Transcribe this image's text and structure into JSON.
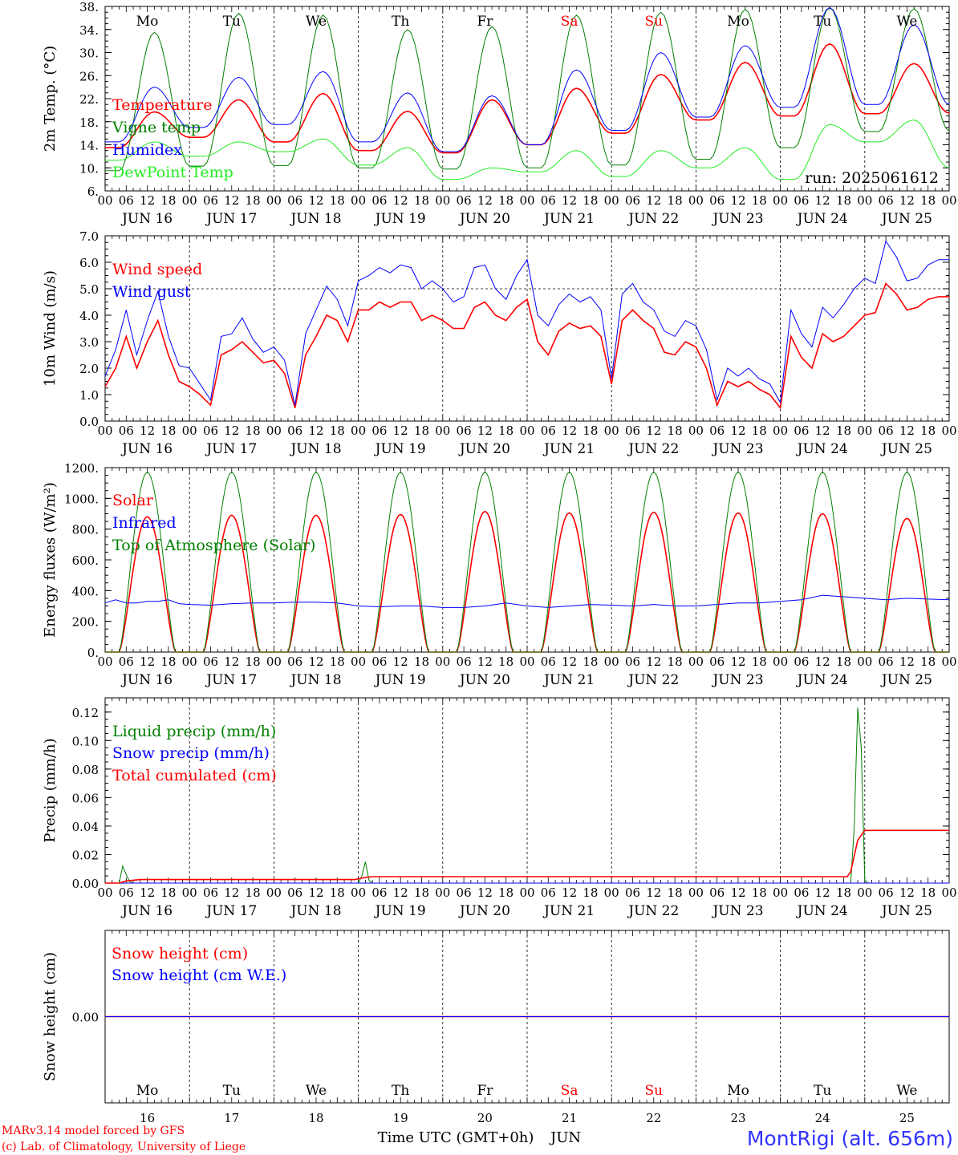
{
  "run_label": "run: 2025061612",
  "station": "MontRigi (alt. 656m)",
  "footer": {
    "line1": "MARv3.14 model forced by GFS",
    "line2": "(c) Lab. of Climatology, University of Liege",
    "xlabel": "Time UTC (GMT+0h)",
    "month": "JUN"
  },
  "days": {
    "weekday": [
      "Mo",
      "Tu",
      "We",
      "Th",
      "Fr",
      "Sa",
      "Su",
      "Mo",
      "Tu",
      "We"
    ],
    "weekend": [
      false,
      false,
      false,
      false,
      false,
      true,
      true,
      false,
      false,
      false
    ],
    "date_labels": [
      "JUN 16",
      "JUN 17",
      "JUN 18",
      "JUN 19",
      "JUN 20",
      "JUN 21",
      "JUN 22",
      "JUN 23",
      "JUN 24",
      "JUN 25"
    ],
    "day_numbers": [
      "16",
      "17",
      "18",
      "19",
      "20",
      "21",
      "22",
      "23",
      "24",
      "25"
    ],
    "hour_labels": [
      "00",
      "06",
      "12",
      "18"
    ]
  },
  "colors": {
    "red": "#ff0000",
    "green": "#008000",
    "blue": "#0000ff",
    "lightgreen": "#22ee22"
  },
  "chart_data": [
    {
      "id": "temp",
      "type": "line",
      "ylabel": "2m Temp. (°C)",
      "ylim": [
        6,
        38
      ],
      "yticks": [
        6,
        10,
        14,
        18,
        22,
        26,
        30,
        34,
        38
      ],
      "ytick_labels": [
        "6.",
        "10.",
        "14.",
        "18.",
        "22.",
        "26.",
        "30.",
        "34.",
        "38."
      ],
      "show_weekdays": true,
      "series": [
        {
          "name": "Temperature",
          "color": "#ff0000",
          "mins": [
            13.5,
            15.3,
            14.5,
            13.0,
            12.6,
            14.0,
            16.0,
            18.3,
            19.0,
            19.4,
            19.5
          ],
          "maxs": [
            19.7,
            21.8,
            22.9,
            19.8,
            21.8,
            23.8,
            26.2,
            28.3,
            31.5,
            28.1
          ]
        },
        {
          "name": "Vigne temp",
          "color": "#008000",
          "mins": [
            9.5,
            10.3,
            10.4,
            10.0,
            9.8,
            10.0,
            10.5,
            11.5,
            13.5,
            16.3,
            16.4
          ],
          "maxs": [
            33.5,
            36.8,
            36.5,
            34.0,
            34.5,
            36.5,
            37.0,
            37.5,
            37.8,
            37.6
          ]
        },
        {
          "name": "Humidex",
          "color": "#0000ff",
          "mins": [
            14.5,
            17.0,
            17.5,
            14.5,
            12.8,
            14.0,
            16.5,
            18.8,
            20.5,
            21.0,
            21.0
          ],
          "maxs": [
            24.0,
            25.7,
            26.7,
            23.0,
            22.5,
            27.0,
            30.0,
            31.2,
            37.8,
            34.8
          ]
        },
        {
          "name": "DewPoint Temp",
          "color": "#22ee22",
          "mins": [
            11.3,
            12.0,
            12.8,
            10.5,
            8.0,
            9.3,
            8.5,
            10.0,
            8.0,
            14.5,
            10.0
          ],
          "maxs": [
            14.5,
            14.5,
            15.0,
            13.5,
            10.0,
            13.0,
            13.0,
            13.5,
            17.5,
            18.3
          ]
        }
      ]
    },
    {
      "id": "wind",
      "type": "line",
      "ylabel": "10m Wind (m/s)",
      "ylim": [
        0,
        7
      ],
      "yticks": [
        0,
        1,
        2,
        3,
        4,
        5,
        6,
        7
      ],
      "ytick_labels": [
        "0.0",
        "1.0",
        "2.0",
        "3.0",
        "4.0",
        "5.0",
        "6.0",
        "7.0"
      ],
      "refline": 5,
      "series": [
        {
          "name": "Wind speed",
          "color": "#ff0000",
          "x": [
            0,
            3,
            6,
            9,
            12,
            15,
            18,
            21,
            24,
            27,
            30,
            33,
            36,
            39,
            42,
            45,
            48,
            51,
            54,
            57,
            60,
            63,
            66,
            69,
            72,
            75,
            78,
            81,
            84,
            87,
            90,
            93,
            96,
            99,
            102,
            105,
            108,
            111,
            114,
            117,
            120,
            123,
            126,
            129,
            132,
            135,
            138,
            141,
            144,
            147,
            150,
            153,
            156,
            159,
            162,
            165,
            168,
            171,
            174,
            177,
            180,
            183,
            186,
            189,
            192,
            195,
            198,
            201,
            204,
            207,
            210,
            213,
            216,
            219,
            222,
            225,
            228,
            231,
            234,
            237,
            240
          ],
          "values": [
            1.3,
            2.0,
            3.2,
            2.0,
            3.0,
            3.8,
            2.5,
            1.5,
            1.3,
            1.0,
            0.6,
            2.5,
            2.7,
            3.0,
            2.6,
            2.2,
            2.3,
            1.8,
            0.5,
            2.5,
            3.2,
            4.0,
            3.8,
            3.0,
            4.2,
            4.2,
            4.5,
            4.3,
            4.5,
            4.5,
            3.8,
            4.0,
            3.8,
            3.5,
            3.5,
            4.3,
            4.5,
            4.0,
            3.8,
            4.3,
            4.6,
            3.0,
            2.5,
            3.4,
            3.7,
            3.5,
            3.6,
            3.2,
            1.4,
            3.8,
            4.2,
            3.8,
            3.5,
            2.6,
            2.5,
            3.0,
            2.8,
            2.0,
            0.6,
            1.5,
            1.3,
            1.5,
            1.2,
            1.0,
            0.5,
            3.2,
            2.4,
            2.0,
            3.3,
            3.0,
            3.2,
            3.6,
            4.0,
            4.1,
            5.2,
            4.8,
            4.2,
            4.3,
            4.6,
            4.7,
            4.7
          ]
        },
        {
          "name": "Wind gust",
          "color": "#0000ff",
          "x": [
            0,
            3,
            6,
            9,
            12,
            15,
            18,
            21,
            24,
            27,
            30,
            33,
            36,
            39,
            42,
            45,
            48,
            51,
            54,
            57,
            60,
            63,
            66,
            69,
            72,
            75,
            78,
            81,
            84,
            87,
            90,
            93,
            96,
            99,
            102,
            105,
            108,
            111,
            114,
            117,
            120,
            123,
            126,
            129,
            132,
            135,
            138,
            141,
            144,
            147,
            150,
            153,
            156,
            159,
            162,
            165,
            168,
            171,
            174,
            177,
            180,
            183,
            186,
            189,
            192,
            195,
            198,
            201,
            204,
            207,
            210,
            213,
            216,
            219,
            222,
            225,
            228,
            231,
            234,
            237,
            240
          ],
          "values": [
            1.7,
            2.7,
            4.2,
            2.5,
            3.8,
            4.9,
            3.2,
            2.1,
            2.0,
            1.4,
            0.8,
            3.2,
            3.3,
            3.9,
            3.1,
            2.6,
            2.8,
            2.3,
            0.6,
            3.3,
            4.2,
            5.1,
            4.6,
            3.6,
            5.3,
            5.5,
            5.8,
            5.6,
            5.9,
            5.8,
            5.0,
            5.3,
            5.0,
            4.5,
            4.7,
            5.8,
            5.9,
            5.0,
            4.6,
            5.5,
            6.1,
            4.0,
            3.6,
            4.4,
            4.8,
            4.5,
            4.7,
            4.2,
            1.6,
            4.8,
            5.2,
            4.5,
            4.2,
            3.4,
            3.2,
            3.8,
            3.6,
            2.7,
            0.8,
            2.0,
            1.7,
            2.0,
            1.6,
            1.4,
            0.7,
            4.2,
            3.3,
            2.8,
            4.3,
            3.9,
            4.4,
            5.0,
            5.4,
            5.2,
            6.8,
            6.2,
            5.3,
            5.4,
            5.9,
            6.1,
            6.1
          ]
        }
      ]
    },
    {
      "id": "flux",
      "type": "line",
      "ylabel": "Energy fluxes (W/m²)",
      "ylim": [
        0,
        1200
      ],
      "yticks": [
        0,
        200,
        400,
        600,
        800,
        1000,
        1200
      ],
      "ytick_labels": [
        "0.",
        "200.",
        "400.",
        "600.",
        "800.",
        "1000.",
        "1200."
      ],
      "series": [
        {
          "name": "Solar",
          "color": "#ff0000",
          "daily_peak": [
            880,
            890,
            890,
            895,
            915,
            905,
            910,
            905,
            900,
            870
          ]
        },
        {
          "name": "Infrared",
          "color": "#0000ff",
          "x": [
            0,
            3,
            6,
            9,
            12,
            15,
            18,
            21,
            24,
            30,
            36,
            42,
            48,
            54,
            60,
            66,
            72,
            78,
            84,
            90,
            96,
            102,
            108,
            114,
            120,
            126,
            132,
            138,
            144,
            150,
            156,
            162,
            168,
            174,
            180,
            186,
            192,
            198,
            204,
            210,
            216,
            222,
            228,
            234,
            240
          ],
          "values": [
            320,
            340,
            320,
            320,
            330,
            330,
            340,
            315,
            310,
            305,
            315,
            320,
            320,
            325,
            325,
            320,
            300,
            295,
            300,
            300,
            290,
            290,
            300,
            320,
            300,
            290,
            300,
            310,
            305,
            300,
            310,
            300,
            300,
            310,
            320,
            320,
            330,
            340,
            370,
            360,
            350,
            340,
            350,
            345,
            340
          ]
        },
        {
          "name": "Top of Atmosphere (Solar)",
          "color": "#008000",
          "daily_peak": [
            1170,
            1170,
            1170,
            1170,
            1170,
            1170,
            1170,
            1170,
            1170,
            1170
          ]
        }
      ]
    },
    {
      "id": "precip",
      "type": "line",
      "ylabel": "Precip (mm/h)",
      "ylim": [
        0,
        0.13
      ],
      "yticks": [
        0,
        0.02,
        0.04,
        0.06,
        0.08,
        0.1,
        0.12
      ],
      "ytick_labels": [
        "0.00",
        "0.02",
        "0.04",
        "0.06",
        "0.08",
        "0.10",
        "0.12"
      ],
      "series": [
        {
          "name": "Liquid precip (mm/h)",
          "color": "#008000",
          "x": [
            0,
            4,
            5,
            6,
            7,
            8,
            72,
            73,
            74,
            75,
            76,
            212,
            213,
            214,
            215,
            216,
            217,
            218,
            240
          ],
          "values": [
            0,
            0,
            0.012,
            0.006,
            0.001,
            0,
            0,
            0.005,
            0.015,
            0.002,
            0,
            0,
            0.04,
            0.123,
            0.095,
            0.002,
            0,
            0,
            0
          ]
        },
        {
          "name": "Snow precip (mm/h)",
          "color": "#0000ff",
          "x": [
            0,
            240
          ],
          "values": [
            0,
            0
          ]
        },
        {
          "name": "Total cumulated (cm)",
          "color": "#ff0000",
          "x": [
            0,
            4,
            6,
            8,
            10,
            71,
            72,
            74,
            76,
            211,
            212,
            214,
            216,
            217,
            240
          ],
          "values": [
            0,
            0,
            0.0015,
            0.002,
            0.0025,
            0.0025,
            0.003,
            0.004,
            0.0045,
            0.0045,
            0.008,
            0.03,
            0.037,
            0.037,
            0.037
          ]
        }
      ]
    },
    {
      "id": "snow",
      "type": "line",
      "ylabel": "Snow height (cm)",
      "ylim": [
        -1,
        1
      ],
      "yticks": [
        0
      ],
      "ytick_labels": [
        "0.00"
      ],
      "show_weekdays_bottom": true,
      "series": [
        {
          "name": "Snow height (cm)",
          "color": "#ff0000",
          "x": [
            0,
            240
          ],
          "values": [
            0,
            0
          ]
        },
        {
          "name": "Snow height (cm W.E.)",
          "color": "#0000ff",
          "x": [
            0,
            240
          ],
          "values": [
            0,
            0
          ]
        }
      ]
    }
  ]
}
